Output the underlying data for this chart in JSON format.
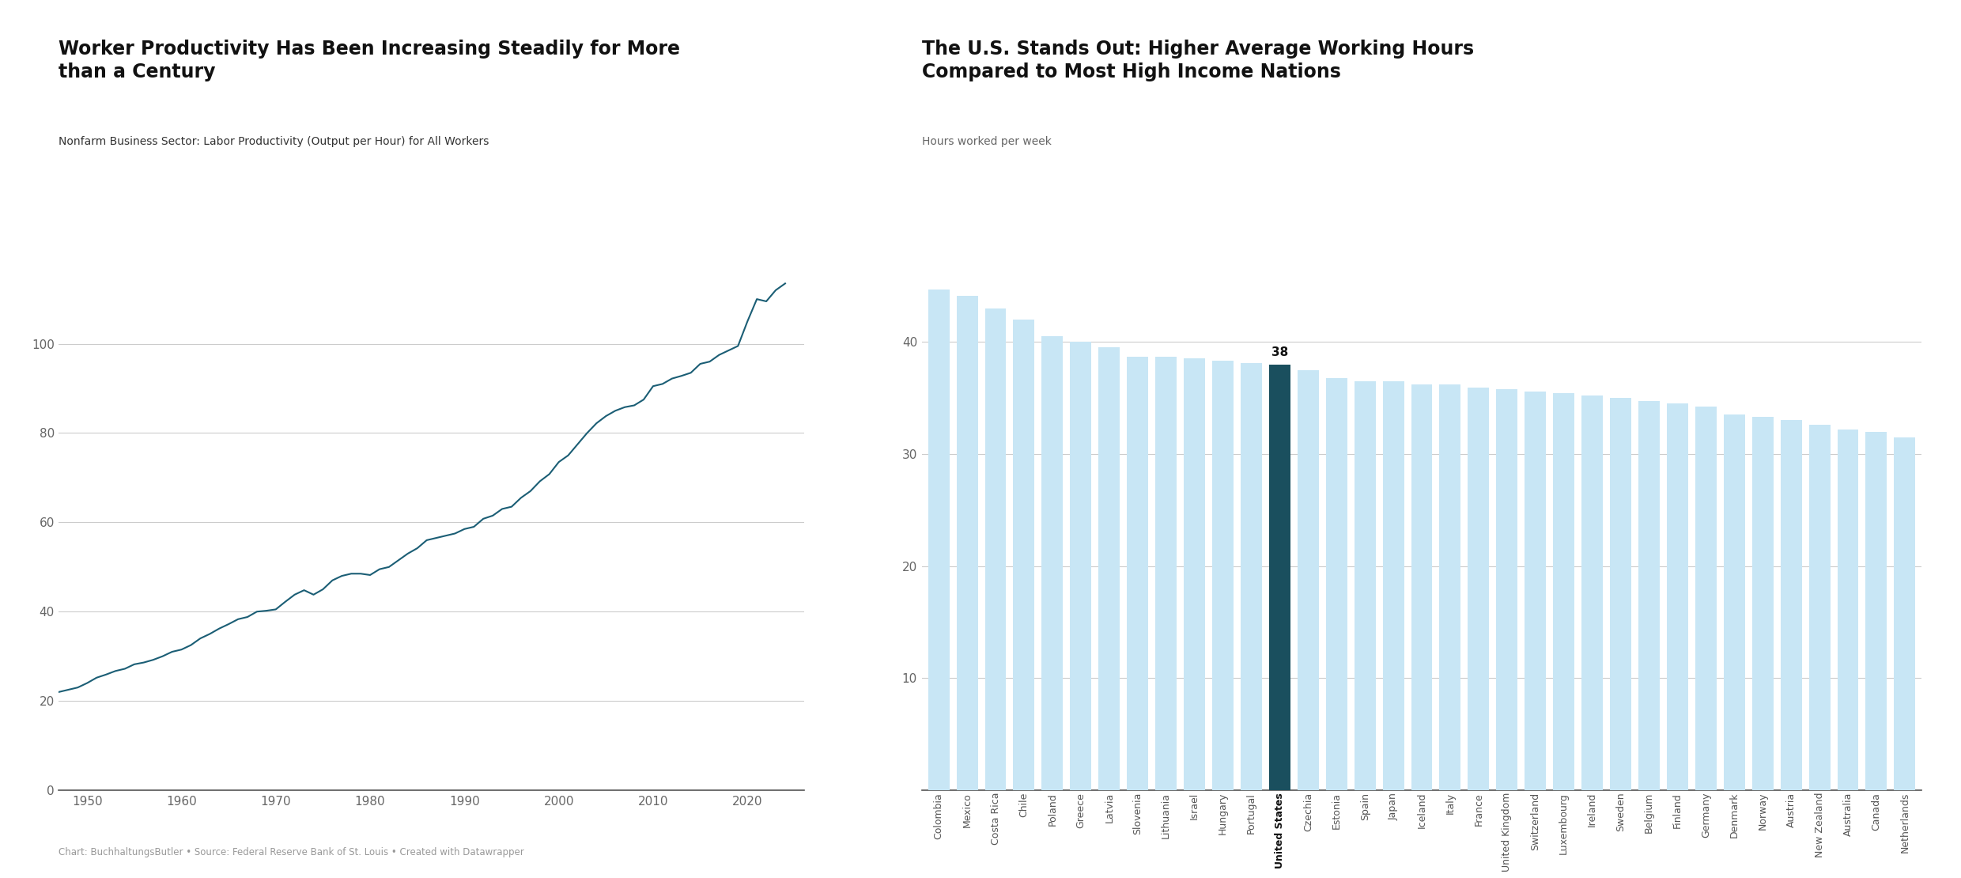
{
  "line_chart": {
    "title": "Worker Productivity Has Been Increasing Steadily for More\nthan a Century",
    "subtitle": "Nonfarm Business Sector: Labor Productivity (Output per Hour) for All Workers",
    "footer": "Chart: BuchhaltungsButler • Source: Federal Reserve Bank of St. Louis • Created with Datawrapper",
    "line_color": "#1b5e75",
    "yticks": [
      0,
      20,
      40,
      60,
      80,
      100
    ],
    "xticks": [
      1950,
      1960,
      1970,
      1980,
      1990,
      2000,
      2010,
      2020
    ],
    "xlim": [
      1947,
      2026
    ],
    "ylim": [
      0,
      118
    ],
    "data": {
      "years": [
        1947,
        1948,
        1949,
        1950,
        1951,
        1952,
        1953,
        1954,
        1955,
        1956,
        1957,
        1958,
        1959,
        1960,
        1961,
        1962,
        1963,
        1964,
        1965,
        1966,
        1967,
        1968,
        1969,
        1970,
        1971,
        1972,
        1973,
        1974,
        1975,
        1976,
        1977,
        1978,
        1979,
        1980,
        1981,
        1982,
        1983,
        1984,
        1985,
        1986,
        1987,
        1988,
        1989,
        1990,
        1991,
        1992,
        1993,
        1994,
        1995,
        1996,
        1997,
        1998,
        1999,
        2000,
        2001,
        2002,
        2003,
        2004,
        2005,
        2006,
        2007,
        2008,
        2009,
        2010,
        2011,
        2012,
        2013,
        2014,
        2015,
        2016,
        2017,
        2018,
        2019,
        2020,
        2021,
        2022,
        2023,
        2024
      ],
      "values": [
        22.0,
        22.5,
        23.0,
        24.0,
        25.2,
        25.9,
        26.7,
        27.2,
        28.2,
        28.6,
        29.2,
        30.0,
        31.0,
        31.5,
        32.5,
        34.0,
        35.0,
        36.2,
        37.2,
        38.3,
        38.8,
        40.0,
        40.2,
        40.5,
        42.2,
        43.8,
        44.8,
        43.8,
        45.0,
        47.0,
        48.0,
        48.5,
        48.5,
        48.2,
        49.5,
        50.0,
        51.5,
        53.0,
        54.2,
        56.0,
        56.5,
        57.0,
        57.5,
        58.5,
        59.0,
        60.8,
        61.5,
        63.0,
        63.5,
        65.5,
        67.0,
        69.2,
        70.8,
        73.5,
        75.0,
        77.5,
        80.0,
        82.2,
        83.8,
        85.0,
        85.8,
        86.2,
        87.5,
        90.5,
        91.0,
        92.2,
        92.8,
        93.5,
        95.5,
        96.0,
        97.5,
        98.5,
        99.5,
        105.0,
        110.0,
        109.5,
        112.0,
        113.5
      ]
    }
  },
  "bar_chart": {
    "title": "The U.S. Stands Out: Higher Average Working Hours\nCompared to Most High Income Nations",
    "subtitle": "Hours worked per week",
    "bar_color_default": "#c8e6f5",
    "bar_color_highlight": "#1a4f5e",
    "highlight_country": "United States",
    "highlight_label": "38",
    "ylim": [
      0,
      47
    ],
    "yticks": [
      10,
      20,
      30,
      40
    ],
    "countries": [
      "Colombia",
      "Mexico",
      "Costa Rica",
      "Chile",
      "Poland",
      "Greece",
      "Latvia",
      "Slovenia",
      "Lithuania",
      "Israel",
      "Hungary",
      "Portugal",
      "United States",
      "Czechia",
      "Estonia",
      "Spain",
      "Japan",
      "Iceland",
      "Italy",
      "France",
      "United Kingdom",
      "Switzerland",
      "Luxembourg",
      "Ireland",
      "Sweden",
      "Belgium",
      "Finland",
      "Germany",
      "Denmark",
      "Norway",
      "Austria",
      "New Zealand",
      "Australia",
      "Canada",
      "Netherlands"
    ],
    "values": [
      44.7,
      44.1,
      43.0,
      42.0,
      40.5,
      40.0,
      39.5,
      38.7,
      38.7,
      38.5,
      38.3,
      38.1,
      38.0,
      37.5,
      36.8,
      36.5,
      36.5,
      36.2,
      36.2,
      35.9,
      35.8,
      35.6,
      35.4,
      35.2,
      35.0,
      34.7,
      34.5,
      34.2,
      33.5,
      33.3,
      33.0,
      32.6,
      32.2,
      32.0,
      31.5
    ]
  }
}
